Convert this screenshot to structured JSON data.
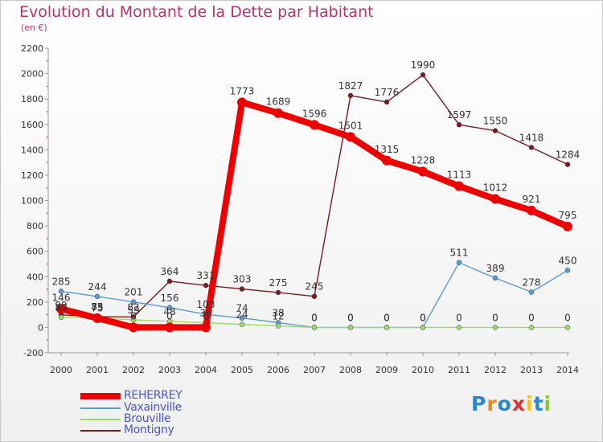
{
  "title": "Evolution du Montant de la Dette par Habitant",
  "subtitle": "(en €)",
  "logo": [
    "P",
    "r",
    "o",
    "x",
    "i",
    "t",
    "i"
  ],
  "logo_colors": [
    "#2d86c8",
    "#f08a1e",
    "#2d86c8",
    "#e03030",
    "#f0c020",
    "#2d86c8",
    "#8cc63f"
  ],
  "chart_data": {
    "type": "line",
    "x": [
      "2000",
      "2001",
      "2002",
      "2003",
      "2004",
      "2005",
      "2006",
      "2007",
      "2008",
      "2009",
      "2010",
      "2011",
      "2012",
      "2013",
      "2014"
    ],
    "ylim": [
      -200,
      2200
    ],
    "yticks": [
      "-200",
      "0",
      "200",
      "400",
      "600",
      "800",
      "1000",
      "1200",
      "1400",
      "1600",
      "1800",
      "2000",
      "2200"
    ],
    "grid": false,
    "legend": "bottom-left",
    "series": [
      {
        "name": "REHERREY",
        "color": "#ee0000",
        "values": [
          146,
          73,
          0,
          0,
          0,
          1773,
          1689,
          1596,
          1501,
          1315,
          1228,
          1113,
          1012,
          921,
          795
        ],
        "labels": [
          "146",
          "73",
          "0",
          "0",
          "0",
          "1773",
          "1689",
          "1596",
          "1501",
          "1315",
          "1228",
          "1113",
          "1012",
          "921",
          "795"
        ]
      },
      {
        "name": "Vaxainville",
        "color": "#5b9bd5",
        "values": [
          285,
          244,
          201,
          156,
          103,
          74,
          38,
          0,
          0,
          0,
          0,
          511,
          389,
          278,
          450
        ],
        "labels": [
          "285",
          "244",
          "201",
          "156",
          "103",
          "74",
          "38",
          "0",
          "0",
          "0",
          "0",
          "511",
          "389",
          "278",
          "450"
        ]
      },
      {
        "name": "Brouville",
        "color": "#99dd66",
        "values": [
          80,
          75,
          59,
          48,
          36,
          24,
          12,
          0,
          0,
          0,
          0,
          0,
          0,
          0,
          0
        ],
        "labels": [
          "80",
          "75",
          "59",
          "48",
          "36",
          "24",
          "12",
          "0",
          "0",
          "0",
          "0",
          "0",
          "0",
          "0",
          "0"
        ]
      },
      {
        "name": "Montigny",
        "color": "#7a1a1a",
        "values": [
          99,
          85,
          82,
          364,
          331,
          303,
          275,
          245,
          1827,
          1776,
          1990,
          1597,
          1550,
          1418,
          1284
        ],
        "labels": [
          "99",
          "85",
          "82",
          "364",
          "331",
          "303",
          "275",
          "245",
          "1827",
          "1776",
          "1990",
          "1597",
          "1550",
          "1418",
          "1284"
        ]
      }
    ]
  }
}
